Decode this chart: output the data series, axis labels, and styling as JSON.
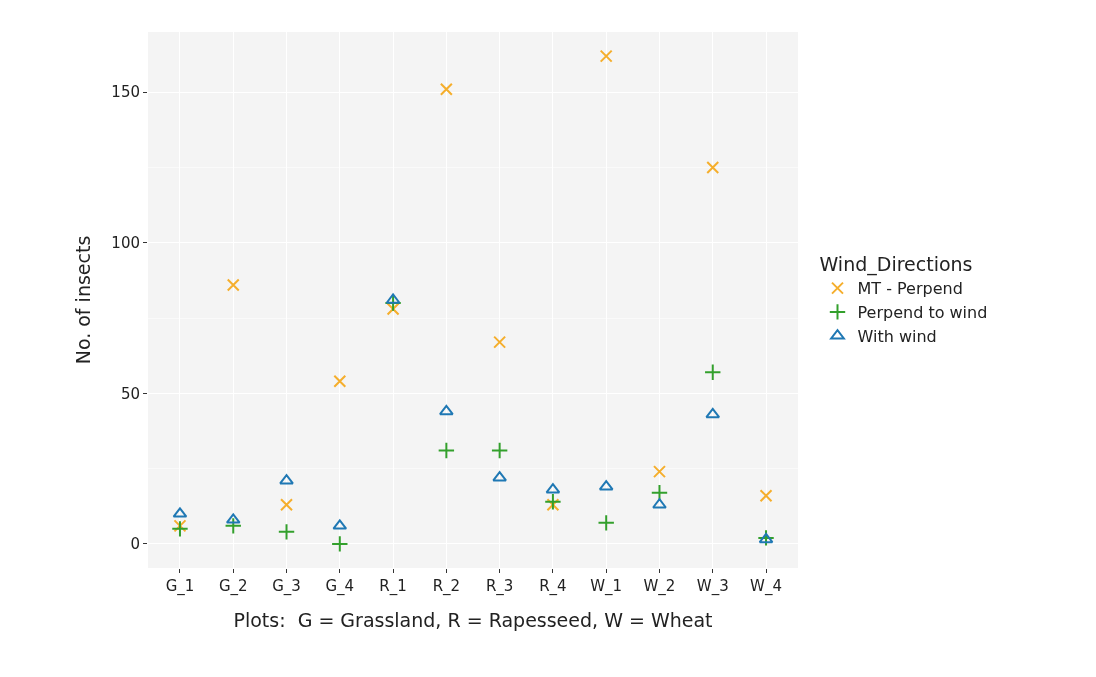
{
  "chart_data": {
    "type": "scatter",
    "xlabel": "Plots:  G = Grassland, R = Rapesseed, W = Wheat",
    "ylabel": "No. of insects",
    "legend_title": "Wind_Directions",
    "categories": [
      "G_1",
      "G_2",
      "G_3",
      "G_4",
      "R_1",
      "R_2",
      "R_3",
      "R_4",
      "W_1",
      "W_2",
      "W_3",
      "W_4"
    ],
    "series": [
      {
        "name": "MT - Perpend",
        "color": "#f5ae2c",
        "marker": "x",
        "values": [
          6,
          86,
          13,
          54,
          78,
          151,
          67,
          13,
          162,
          24,
          125,
          16
        ]
      },
      {
        "name": "Perpend to wind",
        "color": "#33a02c",
        "marker": "cross",
        "values": [
          5,
          6,
          4,
          0,
          80,
          31,
          31,
          14,
          7,
          17,
          57,
          2
        ]
      },
      {
        "name": "With wind",
        "color": "#1f78b4",
        "marker": "triangle",
        "values": [
          10,
          8,
          21,
          6,
          81,
          44,
          22,
          18,
          19,
          13,
          43,
          1.5
        ]
      }
    ],
    "ylim": [
      -8,
      170
    ],
    "yticks": [
      0,
      50,
      100,
      150
    ],
    "grid": true,
    "legend": "right"
  }
}
